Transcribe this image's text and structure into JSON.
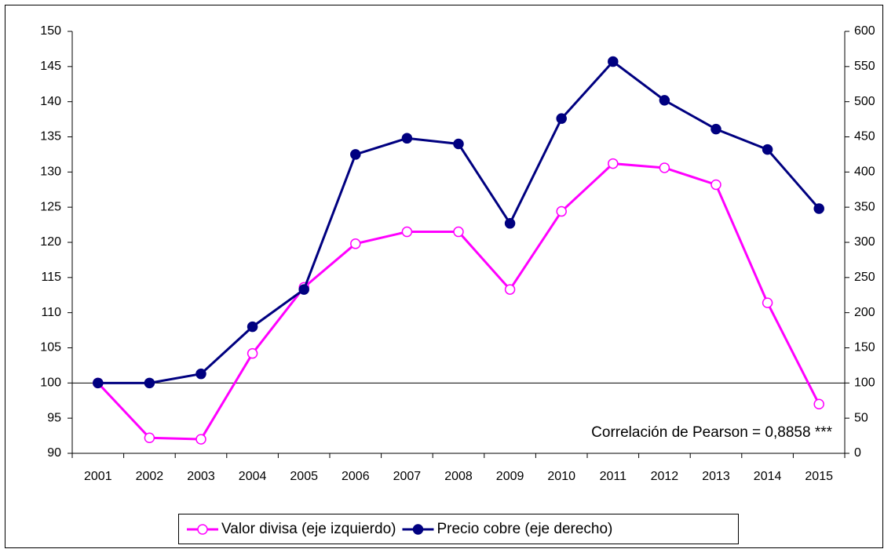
{
  "chart_data": {
    "type": "line",
    "categories": [
      "2001",
      "2002",
      "2003",
      "2004",
      "2005",
      "2006",
      "2007",
      "2008",
      "2009",
      "2010",
      "2011",
      "2012",
      "2013",
      "2014",
      "2015"
    ],
    "series": [
      {
        "name": "Valor divisa (eje izquierdo)",
        "color": "#ff00ff",
        "marker": "open-circle",
        "values": [
          100,
          92.2,
          92.0,
          104.2,
          113.6,
          119.8,
          121.5,
          121.5,
          113.3,
          124.4,
          131.2,
          130.6,
          128.2,
          111.4,
          97.0
        ]
      },
      {
        "name": "Precio cobre (eje derecho)",
        "color": "#000080",
        "marker": "filled-circle",
        "axis": "y2",
        "values": [
          100,
          100,
          113,
          180,
          233,
          425,
          448,
          440,
          327,
          476,
          557,
          502,
          461,
          432,
          348
        ]
      }
    ],
    "ylim": [
      90,
      150
    ],
    "yticks": [
      90,
      95,
      100,
      105,
      110,
      115,
      120,
      125,
      130,
      135,
      140,
      145,
      150
    ],
    "y2lim": [
      0,
      600
    ],
    "y2ticks": [
      0,
      50,
      100,
      150,
      200,
      250,
      300,
      350,
      400,
      450,
      500,
      550,
      600
    ],
    "x_axis_crosses": 100,
    "annotation": "Correlación de Pearson = 0,8858 ***",
    "legend": "bottom"
  }
}
